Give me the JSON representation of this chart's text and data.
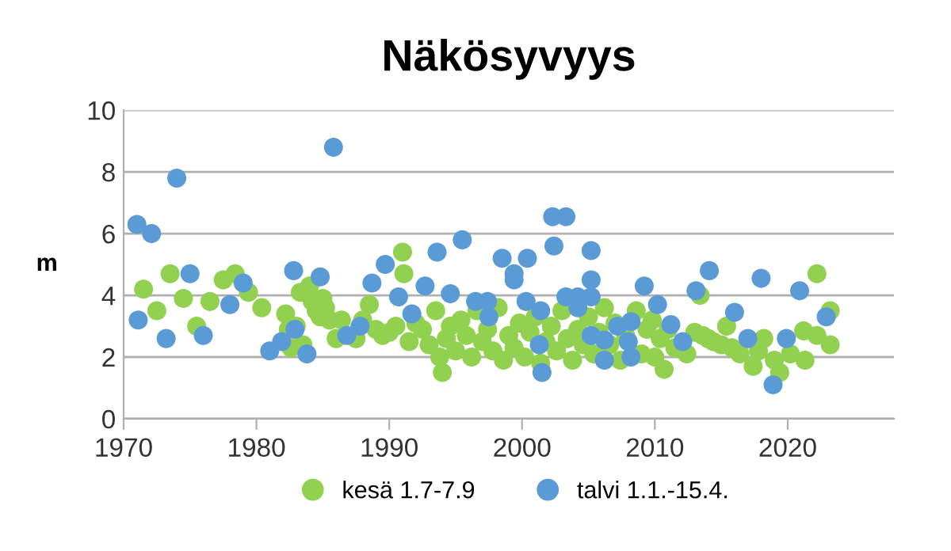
{
  "chart_data": {
    "type": "scatter",
    "title": "Näkösyvyys",
    "ylabel": "m",
    "xlim": [
      1970,
      2028
    ],
    "xticks": [
      1970,
      1980,
      1990,
      2000,
      2010,
      2020
    ],
    "ylim": [
      0,
      10
    ],
    "yticks": [
      0,
      2,
      4,
      6,
      8,
      10
    ],
    "grid": "y",
    "legend": "bottom",
    "marker": "circle",
    "series": [
      {
        "name": "kesä 1.7-7.9",
        "color": "#92d050",
        "x": [
          1971.5,
          1972.5,
          1973.5,
          1974.5,
          1975.5,
          1976.5,
          1977.5,
          1978.4,
          1979.4,
          1980.4,
          1982.2,
          1982.4,
          1982.6,
          1983.0,
          1983.3,
          1983.5,
          1984.0,
          1984.2,
          1984.5,
          1984.8,
          1985.0,
          1985.2,
          1985.5,
          1986.0,
          1986.4,
          1987.5,
          1988.0,
          1988.5,
          1989.0,
          1989.5,
          1990.0,
          1990.5,
          1991.0,
          1991.1,
          1991.5,
          1992.0,
          1992.5,
          1993.0,
          1993.5,
          1993.8,
          1994.0,
          1994.3,
          1994.6,
          1995.0,
          1995.4,
          1995.8,
          1996.2,
          1996.6,
          1997.0,
          1997.4,
          1997.8,
          1998.2,
          1998.6,
          1999.0,
          1999.4,
          1999.8,
          2000.2,
          2000.6,
          2001.0,
          2001.4,
          2001.8,
          2002.2,
          2002.6,
          2003.0,
          2003.4,
          2003.8,
          2004.2,
          2004.6,
          2005.0,
          2005.4,
          2005.8,
          2006.2,
          2006.6,
          2007.0,
          2007.4,
          2007.8,
          2008.6,
          2009.0,
          2009.4,
          2009.8,
          2010.0,
          2010.4,
          2010.7,
          2011.0,
          2011.5,
          2012.4,
          2013.0,
          2013.4,
          2013.6,
          2014.0,
          2014.4,
          2015.0,
          2015.4,
          2015.8,
          2016.4,
          2017.4,
          2017.8,
          2018.2,
          2019.0,
          2019.4,
          2020.2,
          2021.2,
          2021.3,
          2022.2,
          2022.2,
          2023.2,
          2023.2
        ],
        "values": [
          4.2,
          3.5,
          4.7,
          3.9,
          3.0,
          3.8,
          4.5,
          4.7,
          4.1,
          3.6,
          3.4,
          2.9,
          2.3,
          3.0,
          4.1,
          2.4,
          4.3,
          3.8,
          3.5,
          3.3,
          3.9,
          3.6,
          3.2,
          2.6,
          3.2,
          2.6,
          3.2,
          3.7,
          2.9,
          2.7,
          2.8,
          3.0,
          5.4,
          4.7,
          2.5,
          3.1,
          2.9,
          2.4,
          3.5,
          2.0,
          1.5,
          2.6,
          3.0,
          2.2,
          3.2,
          2.7,
          2.0,
          3.5,
          2.5,
          2.9,
          2.2,
          3.6,
          1.9,
          2.7,
          2.3,
          3.1,
          2.0,
          2.8,
          3.3,
          1.8,
          2.5,
          3.0,
          2.2,
          3.5,
          2.6,
          1.9,
          2.9,
          2.4,
          3.3,
          2.1,
          2.8,
          3.6,
          2.4,
          3.1,
          1.9,
          2.7,
          3.5,
          2.1,
          2.9,
          3.2,
          2.0,
          2.6,
          1.6,
          2.9,
          2.3,
          2.1,
          2.8,
          4.0,
          2.7,
          2.6,
          2.5,
          2.4,
          3.0,
          2.3,
          2.1,
          1.7,
          2.2,
          2.6,
          1.9,
          1.5,
          2.1,
          2.85,
          1.9,
          4.7,
          2.7,
          3.5,
          2.4
        ]
      },
      {
        "name": "talvi 1.1.-15.4.",
        "color": "#5b9bd5",
        "x": [
          1971.0,
          1971.1,
          1972.1,
          1973.2,
          1974.0,
          1975.0,
          1976.0,
          1978.0,
          1979.0,
          1981.0,
          1981.9,
          1982.8,
          1982.9,
          1983.8,
          1984.8,
          1985.8,
          1986.8,
          1987.8,
          1988.7,
          1989.7,
          1990.7,
          1991.7,
          1992.7,
          1993.6,
          1994.6,
          1995.5,
          1996.5,
          1997.4,
          1997.5,
          1998.5,
          1999.4,
          1999.4,
          2000.4,
          2000.3,
          2001.4,
          2001.3,
          2001.5,
          2002.3,
          2002.4,
          2003.3,
          2003.3,
          2004.2,
          2004.2,
          2005.2,
          2005.2,
          2005.2,
          2005.2,
          2006.2,
          2006.2,
          2007.2,
          2008.2,
          2008.0,
          2008.2,
          2009.2,
          2010.2,
          2011.2,
          2012.1,
          2013.1,
          2014.1,
          2016.0,
          2017.0,
          2018.0,
          2018.9,
          2019.9,
          2020.9,
          2022.9
        ],
        "values": [
          6.3,
          3.2,
          6.0,
          2.6,
          7.8,
          4.7,
          2.7,
          3.7,
          4.4,
          2.2,
          2.5,
          4.8,
          2.9,
          2.1,
          4.6,
          8.8,
          2.7,
          3.0,
          4.4,
          5.0,
          3.95,
          3.4,
          4.3,
          5.4,
          4.05,
          5.8,
          3.8,
          3.8,
          3.3,
          5.2,
          4.7,
          4.5,
          5.2,
          3.8,
          3.5,
          2.4,
          1.5,
          6.55,
          5.6,
          6.55,
          3.95,
          3.95,
          3.6,
          5.45,
          4.5,
          3.95,
          2.7,
          2.55,
          1.9,
          3.0,
          3.15,
          2.5,
          2.0,
          4.3,
          3.7,
          3.05,
          2.5,
          4.15,
          4.8,
          3.45,
          2.6,
          4.55,
          1.1,
          2.6,
          4.15,
          3.3
        ]
      }
    ]
  }
}
